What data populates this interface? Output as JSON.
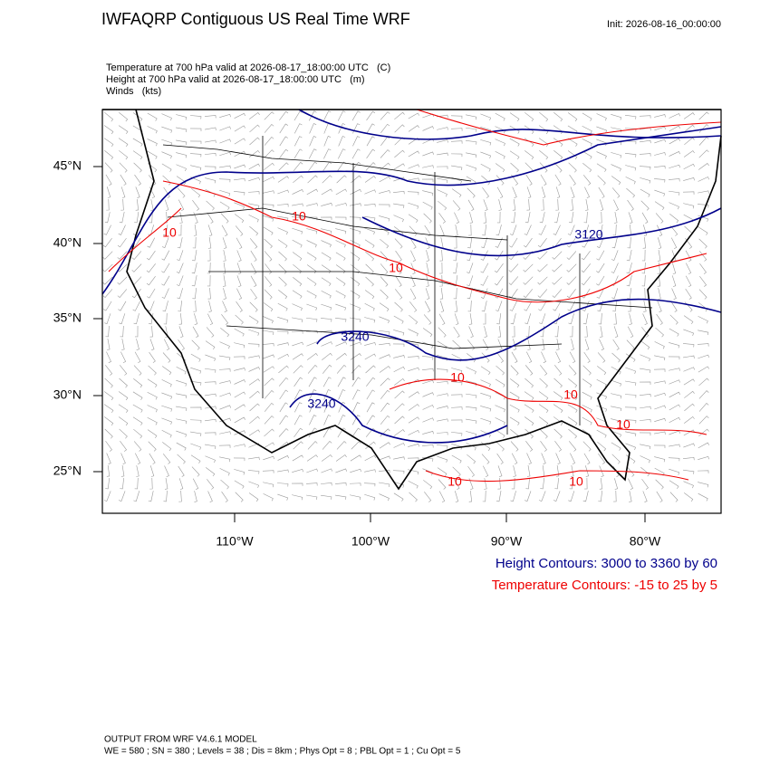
{
  "header": {
    "title": "IWFAQRP Contiguous US Real Time WRF",
    "init": "Init: 2026-08-16_00:00:00"
  },
  "fields": [
    "Temperature at 700 hPa valid at 2026-08-17_18:00:00 UTC   (C)",
    "Height at 700 hPa valid at 2026-08-17_18:00:00 UTC   (m)",
    "Winds   (kts)"
  ],
  "map": {
    "lat_labels": [
      "45°N",
      "40°N",
      "35°N",
      "30°N",
      "25°N"
    ],
    "lon_labels": [
      "110°W",
      "100°W",
      "90°W",
      "80°W"
    ],
    "contour_labels": [
      "10",
      "10",
      "10",
      "3240",
      "3240",
      "3120",
      "10",
      "10",
      "10",
      "10",
      "10"
    ]
  },
  "legend": [
    "Height Contours: 3000 to 3360 by 60",
    "Temperature Contours: -15 to 25 by 5"
  ],
  "footer": [
    "OUTPUT FROM WRF V4.6.1 MODEL",
    "WE = 580 ; SN = 380 ; Levels = 38 ; Dis = 8km ; Phys Opt = 8 ; PBL Opt = 1 ; Cu Opt = 5"
  ]
}
